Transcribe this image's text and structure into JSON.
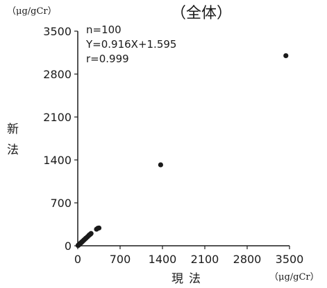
{
  "chart_data": {
    "type": "scatter",
    "title": "（全体）",
    "y_unit": "（μg/gCr）",
    "x_unit": "（μg/gCr）",
    "xlabel_chars": [
      "現",
      "法"
    ],
    "ylabel_chars": [
      "新",
      "法"
    ],
    "xlim": [
      0,
      3500
    ],
    "ylim": [
      0,
      3500
    ],
    "x_ticks": [
      0,
      700,
      1400,
      2100,
      2800,
      3500
    ],
    "y_ticks": [
      0,
      700,
      1400,
      2100,
      2800,
      3500
    ],
    "grid": false,
    "legend": "none",
    "annotations": [
      "n=100",
      "Y=0.916X+1.595",
      "r=0.999"
    ],
    "marker_color": "#1a1a1a",
    "points": [
      {
        "x": 5,
        "y": 5
      },
      {
        "x": 10,
        "y": 9
      },
      {
        "x": 15,
        "y": 14
      },
      {
        "x": 20,
        "y": 18
      },
      {
        "x": 25,
        "y": 22
      },
      {
        "x": 30,
        "y": 27
      },
      {
        "x": 35,
        "y": 32
      },
      {
        "x": 40,
        "y": 37
      },
      {
        "x": 45,
        "y": 41
      },
      {
        "x": 50,
        "y": 46
      },
      {
        "x": 55,
        "y": 50
      },
      {
        "x": 60,
        "y": 55
      },
      {
        "x": 65,
        "y": 60
      },
      {
        "x": 70,
        "y": 64
      },
      {
        "x": 80,
        "y": 73
      },
      {
        "x": 90,
        "y": 82
      },
      {
        "x": 100,
        "y": 92
      },
      {
        "x": 110,
        "y": 101
      },
      {
        "x": 120,
        "y": 110
      },
      {
        "x": 130,
        "y": 119
      },
      {
        "x": 140,
        "y": 128
      },
      {
        "x": 160,
        "y": 146
      },
      {
        "x": 180,
        "y": 165
      },
      {
        "x": 190,
        "y": 176
      },
      {
        "x": 200,
        "y": 183
      },
      {
        "x": 210,
        "y": 190
      },
      {
        "x": 220,
        "y": 200
      },
      {
        "x": 310,
        "y": 270
      },
      {
        "x": 330,
        "y": 285
      },
      {
        "x": 350,
        "y": 290
      },
      {
        "x": 1370,
        "y": 1320
      },
      {
        "x": 3440,
        "y": 3100
      }
    ]
  }
}
